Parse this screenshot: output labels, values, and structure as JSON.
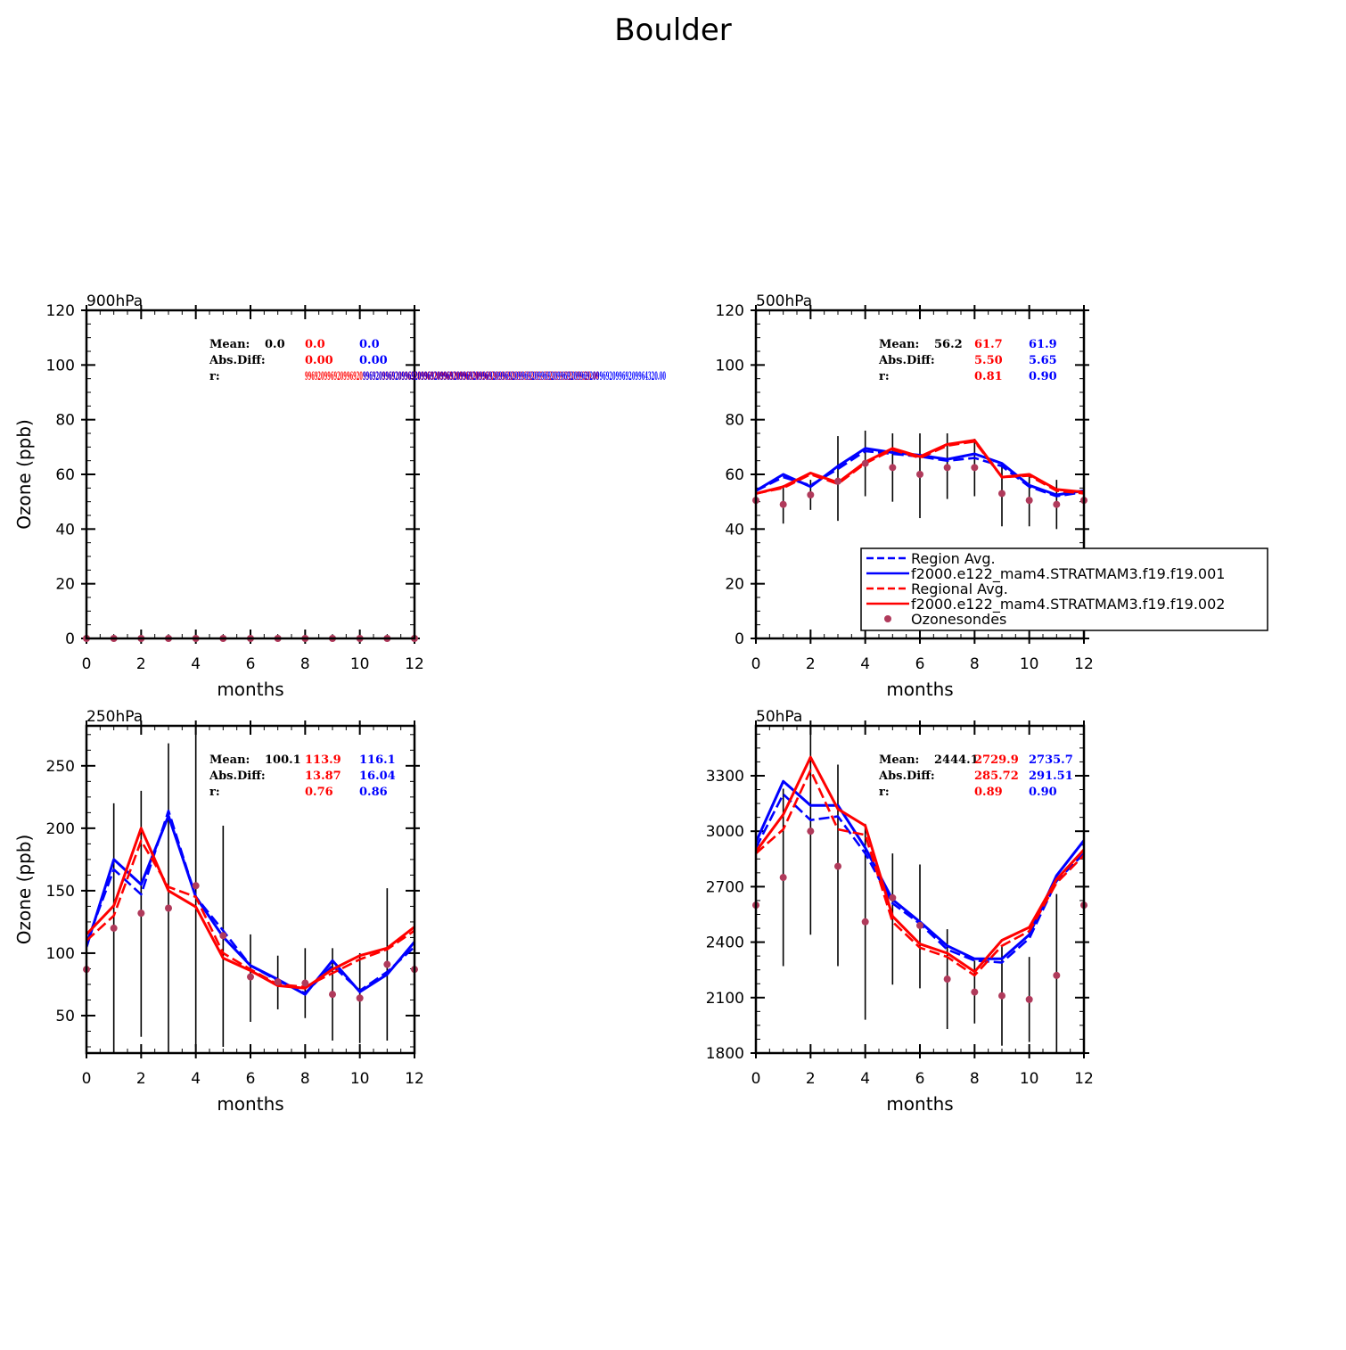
{
  "title": "Boulder",
  "colors": {
    "obs": "#000000",
    "model1": "#ff0000",
    "model2": "#0000ff",
    "obs_marker": "#b03a5b"
  },
  "legend": {
    "entries": [
      {
        "label": "Region Avg.",
        "color": "#0000ff",
        "style": "dashed"
      },
      {
        "label": "f2000.e122_mam4.STRATMAM3.f19.f19.001",
        "color": "#0000ff",
        "style": "solid"
      },
      {
        "label": "Regional Avg.",
        "color": "#ff0000",
        "style": "dashed"
      },
      {
        "label": "f2000.e122_mam4.STRATMAM3.f19.f19.002",
        "color": "#ff0000",
        "style": "solid"
      },
      {
        "label": "Ozonesondes",
        "color": "#b03a5b",
        "style": "marker"
      }
    ]
  },
  "chart_data": [
    {
      "type": "line",
      "title": "900hPa",
      "xlabel": "months",
      "ylabel": "Ozone (ppb)",
      "xlim": [
        0,
        12
      ],
      "ylim": [
        0,
        120
      ],
      "yticks": [
        0,
        20,
        40,
        60,
        80,
        100,
        120
      ],
      "xticks": [
        0,
        2,
        4,
        6,
        8,
        10,
        12
      ],
      "x": [
        0,
        1,
        2,
        3,
        4,
        5,
        6,
        7,
        8,
        9,
        10,
        11,
        12
      ],
      "observations": {
        "name": "Ozonesondes",
        "values": [
          0,
          0,
          0,
          0,
          0,
          0,
          0,
          0,
          0,
          0,
          0,
          0,
          0
        ],
        "errorbars": []
      },
      "series": [],
      "stats": {
        "mean_label": "Mean:",
        "absdiff_label": "Abs.Diff:",
        "r_label": "r:",
        "mean": [
          "0.0",
          "0.0",
          "0.0"
        ],
        "absdiff": [
          "0.00",
          "0.00"
        ],
        "r": [
          "99692099692099692099692099692099692099692099692099692099692099692099692099692099692099620.00",
          "9969209969209969209969209969209969209969209969209969209969209969209969209969209969209964320.00"
        ]
      }
    },
    {
      "type": "line",
      "title": "500hPa",
      "xlabel": "months",
      "ylabel": "",
      "xlim": [
        0,
        12
      ],
      "ylim": [
        0,
        120
      ],
      "yticks": [
        0,
        20,
        40,
        60,
        80,
        100,
        120
      ],
      "xticks": [
        0,
        2,
        4,
        6,
        8,
        10,
        12
      ],
      "x": [
        0,
        1,
        2,
        3,
        4,
        5,
        6,
        7,
        8,
        9,
        10,
        11,
        12
      ],
      "observations": {
        "name": "Ozonesondes",
        "values": [
          50.5,
          49,
          52.5,
          57.5,
          64,
          62.5,
          60,
          62.5,
          62.5,
          53,
          50.5,
          49,
          50.5
        ],
        "errorbars": [
          [
            45,
            55
          ],
          [
            42,
            56
          ],
          [
            47,
            58
          ],
          [
            43,
            74
          ],
          [
            52,
            76
          ],
          [
            50,
            75
          ],
          [
            44,
            75
          ],
          [
            51,
            75
          ],
          [
            52,
            73
          ],
          [
            41,
            64
          ],
          [
            41,
            60
          ],
          [
            40,
            58
          ],
          [
            45,
            55
          ]
        ]
      },
      "series": [
        {
          "name": "Region Avg.",
          "color": "#0000ff",
          "style": "dashed",
          "values": [
            54,
            59,
            56,
            62,
            68.5,
            67.5,
            66.5,
            65,
            66,
            63,
            55.5,
            52,
            53.5
          ]
        },
        {
          "name": "f2000.e122_mam4.STRATMAM3.f19.f19.001",
          "color": "#0000ff",
          "style": "solid",
          "values": [
            54,
            60,
            55.5,
            63,
            69.5,
            68,
            67,
            65.5,
            67.5,
            64,
            56,
            52.5,
            54
          ]
        },
        {
          "name": "Regional Avg.",
          "color": "#ff0000",
          "style": "dashed",
          "values": [
            53,
            55,
            60,
            56.5,
            64,
            69,
            66,
            70.5,
            72,
            59,
            59.5,
            54,
            53
          ]
        },
        {
          "name": "f2000.e122_mam4.STRATMAM3.f19.f19.002",
          "color": "#ff0000",
          "style": "solid",
          "values": [
            53,
            55.5,
            60.5,
            57,
            64.5,
            69.5,
            66.5,
            71,
            72.5,
            59,
            60,
            54.5,
            53.5
          ]
        }
      ],
      "stats": {
        "mean_label": "Mean:",
        "absdiff_label": "Abs.Diff:",
        "r_label": "r:",
        "mean": [
          "56.2",
          "61.7",
          "61.9"
        ],
        "absdiff": [
          "5.50",
          "5.65"
        ],
        "r": [
          "0.81",
          "0.90"
        ]
      }
    },
    {
      "type": "line",
      "title": "250hPa",
      "xlabel": "months",
      "ylabel": "Ozone (ppb)",
      "xlim": [
        0,
        12
      ],
      "ylim": [
        20,
        282
      ],
      "yticks": [
        50,
        100,
        150,
        200,
        250
      ],
      "xticks": [
        0,
        2,
        4,
        6,
        8,
        10,
        12
      ],
      "x": [
        0,
        1,
        2,
        3,
        4,
        5,
        6,
        7,
        8,
        9,
        10,
        11,
        12
      ],
      "observations": {
        "name": "Ozonesondes",
        "values": [
          87,
          120,
          132,
          136,
          154,
          114,
          81,
          77,
          76,
          67,
          64,
          91,
          87
        ],
        "errorbars": [
          [
            60,
            115
          ],
          [
            20,
            220
          ],
          [
            33,
            230
          ],
          [
            20,
            268
          ],
          [
            25,
            285
          ],
          [
            25,
            202
          ],
          [
            45,
            115
          ],
          [
            55,
            98
          ],
          [
            48,
            104
          ],
          [
            30,
            104
          ],
          [
            28,
            100
          ],
          [
            30,
            152
          ],
          [
            60,
            115
          ]
        ]
      },
      "series": [
        {
          "name": "Region Avg.",
          "color": "#0000ff",
          "style": "dashed",
          "values": [
            108,
            167,
            147,
            214,
            145,
            118,
            90,
            78,
            68,
            90,
            70,
            85,
            105
          ]
        },
        {
          "name": "f2000.e122_mam4.STRATMAM3.f19.f19.001",
          "color": "#0000ff",
          "style": "solid",
          "values": [
            105,
            175,
            155,
            210,
            145,
            113,
            90,
            79,
            67,
            94,
            69,
            83,
            109
          ]
        },
        {
          "name": "Regional Avg.",
          "color": "#ff0000",
          "style": "dashed",
          "values": [
            110,
            130,
            190,
            153,
            145,
            100,
            87,
            75,
            73,
            84,
            95,
            103,
            118
          ]
        },
        {
          "name": "f2000.e122_mam4.STRATMAM3.f19.f19.002",
          "color": "#ff0000",
          "style": "solid",
          "values": [
            115,
            138,
            200,
            150,
            137,
            96,
            86,
            74,
            72,
            87,
            98,
            104,
            121
          ]
        }
      ],
      "stats": {
        "mean_label": "Mean:",
        "absdiff_label": "Abs.Diff:",
        "r_label": "r:",
        "mean": [
          "100.1",
          "113.9",
          "116.1"
        ],
        "absdiff": [
          "13.87",
          "16.04"
        ],
        "r": [
          "0.76",
          "0.86"
        ]
      }
    },
    {
      "type": "line",
      "title": "50hPa",
      "xlabel": "months",
      "ylabel": "",
      "xlim": [
        0,
        12
      ],
      "ylim": [
        1800,
        3570
      ],
      "yticks": [
        1800,
        2100,
        2400,
        2700,
        3000,
        3300
      ],
      "xticks": [
        0,
        2,
        4,
        6,
        8,
        10,
        12
      ],
      "x": [
        0,
        1,
        2,
        3,
        4,
        5,
        6,
        7,
        8,
        9,
        10,
        11,
        12
      ],
      "observations": {
        "name": "Ozonesondes",
        "values": [
          2600,
          2750,
          3000,
          2810,
          2510,
          2640,
          2490,
          2200,
          2130,
          2110,
          2090,
          2220,
          2600
        ],
        "errorbars": [
          [
            2450,
            2750
          ],
          [
            2270,
            3230
          ],
          [
            2440,
            3580
          ],
          [
            2270,
            3360
          ],
          [
            1980,
            3040
          ],
          [
            2170,
            2880
          ],
          [
            2150,
            2820
          ],
          [
            1930,
            2470
          ],
          [
            1960,
            2300
          ],
          [
            1840,
            2380
          ],
          [
            1860,
            2320
          ],
          [
            1800,
            2660
          ],
          [
            2450,
            2750
          ]
        ]
      },
      "series": [
        {
          "name": "Region Avg.",
          "color": "#0000ff",
          "style": "dashed",
          "values": [
            2910,
            3200,
            3060,
            3080,
            2880,
            2610,
            2500,
            2360,
            2300,
            2290,
            2420,
            2730,
            2880
          ]
        },
        {
          "name": "f2000.e122_mam4.STRATMAM3.f19.f19.001",
          "color": "#0000ff",
          "style": "solid",
          "values": [
            2940,
            3270,
            3140,
            3140,
            2910,
            2630,
            2510,
            2380,
            2310,
            2310,
            2440,
            2760,
            2950
          ]
        },
        {
          "name": "Regional Avg.",
          "color": "#ff0000",
          "style": "dashed",
          "values": [
            2880,
            3010,
            3330,
            3010,
            2980,
            2510,
            2370,
            2320,
            2220,
            2380,
            2460,
            2720,
            2870
          ]
        },
        {
          "name": "f2000.e122_mam4.STRATMAM3.f19.f19.002",
          "color": "#ff0000",
          "style": "solid",
          "values": [
            2890,
            3090,
            3400,
            3120,
            3030,
            2540,
            2390,
            2340,
            2240,
            2410,
            2480,
            2740,
            2900
          ]
        }
      ],
      "stats": {
        "mean_label": "Mean:",
        "absdiff_label": "Abs.Diff:",
        "r_label": "r:",
        "mean": [
          "2444.1",
          "2729.9",
          "2735.7"
        ],
        "absdiff": [
          "285.72",
          "291.51"
        ],
        "r": [
          "0.89",
          "0.90"
        ]
      }
    }
  ]
}
